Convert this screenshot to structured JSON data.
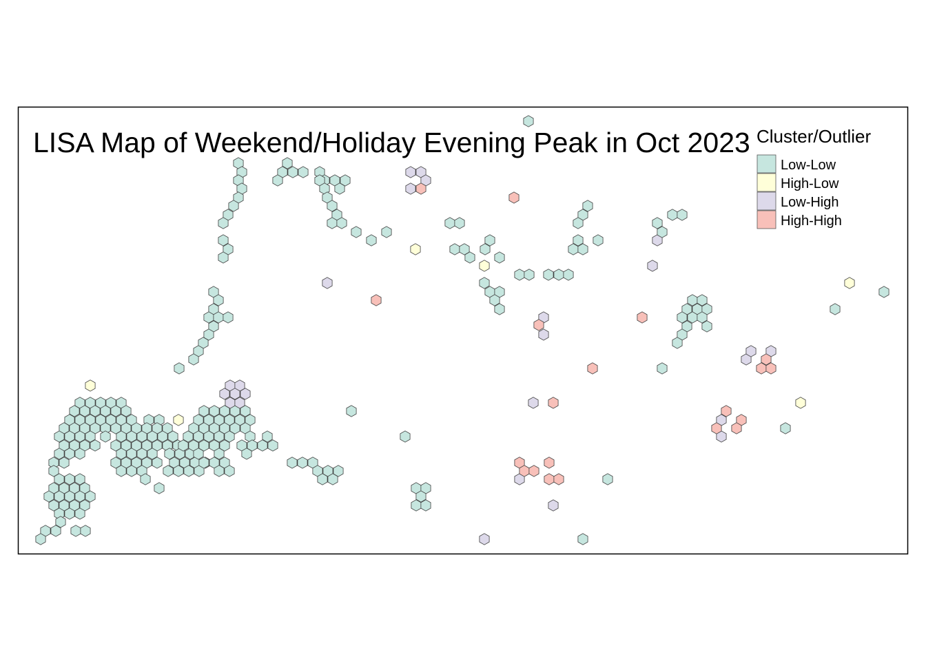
{
  "map": {
    "title": "LISA Map of Weekend/Holiday Evening Peak in Oct 2023",
    "legend": {
      "title": "Cluster/Outlier",
      "items": [
        {
          "key": "LL",
          "label": "Low-Low",
          "color": "#c6e6df"
        },
        {
          "key": "HL",
          "label": "High-Low",
          "color": "#ffffd9"
        },
        {
          "key": "LH",
          "label": "Low-High",
          "color": "#ddd9ea"
        },
        {
          "key": "HH",
          "label": "High-High",
          "color": "#f8c0b9"
        }
      ]
    },
    "border_color": "#000000"
  }
}
